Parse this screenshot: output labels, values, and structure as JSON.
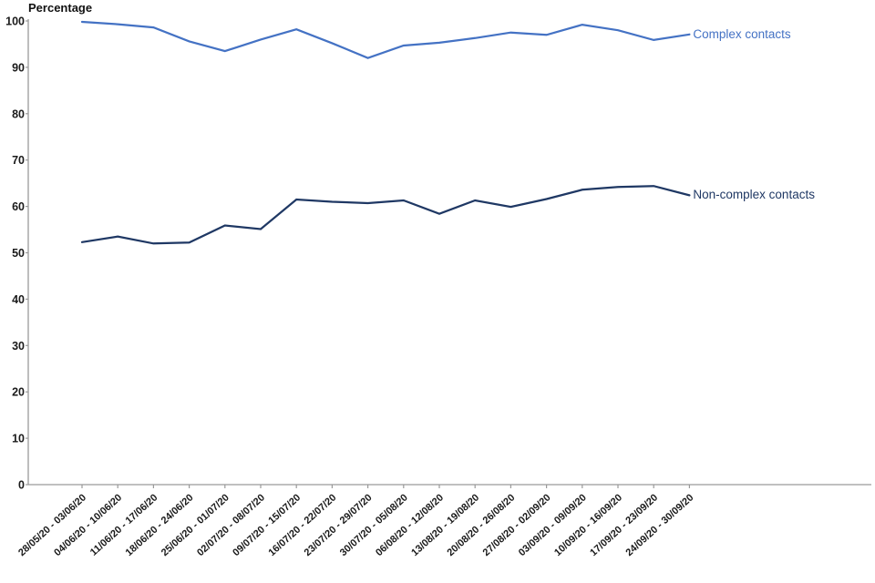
{
  "chart_data": {
    "type": "line",
    "title": "",
    "ylabel": "Percentage",
    "xlabel": "",
    "ylim": [
      0,
      100
    ],
    "ytick_step": 10,
    "grid": false,
    "legend_position": "line-end-labels",
    "categories": [
      "28/05/20 - 03/06/20",
      "04/06/20 - 10/06/20",
      "11/06/20 - 17/06/20",
      "18/06/20 - 24/06/20",
      "25/06/20 - 01/07/20",
      "02/07/20 - 08/07/20",
      "09/07/20 - 15/07/20",
      "16/07/20 - 22/07/20",
      "23/07/20 - 29/07/20",
      "30/07/20 - 05/08/20",
      "06/08/20 - 12/08/20",
      "13/08/20 - 19/08/20",
      "20/08/20 - 26/08/20",
      "27/08/20 - 02/09/20",
      "03/09/20 - 09/09/20",
      "10/09/20 - 16/09/20",
      "17/09/20 - 23/09/20",
      "24/09/20 - 30/09/20"
    ],
    "series": [
      {
        "name": "Complex contacts",
        "color": "#4472C4",
        "values": [
          99.8,
          99.3,
          98.6,
          95.6,
          93.5,
          96.0,
          98.2,
          95.2,
          92.0,
          94.7,
          95.3,
          96.3,
          97.5,
          97.0,
          99.2,
          98.0,
          95.9,
          97.1
        ]
      },
      {
        "name": "Non-complex contacts",
        "color": "#1F3864",
        "values": [
          52.3,
          53.5,
          52.0,
          52.2,
          55.9,
          55.1,
          61.5,
          61.0,
          60.7,
          61.3,
          58.4,
          61.3,
          59.9,
          61.6,
          63.6,
          64.2,
          64.4,
          62.4
        ]
      }
    ]
  },
  "axis": {
    "line_color": "#9a9a9a",
    "tick_color": "#9a9a9a",
    "tick_label_color": "#1a1a1a"
  }
}
